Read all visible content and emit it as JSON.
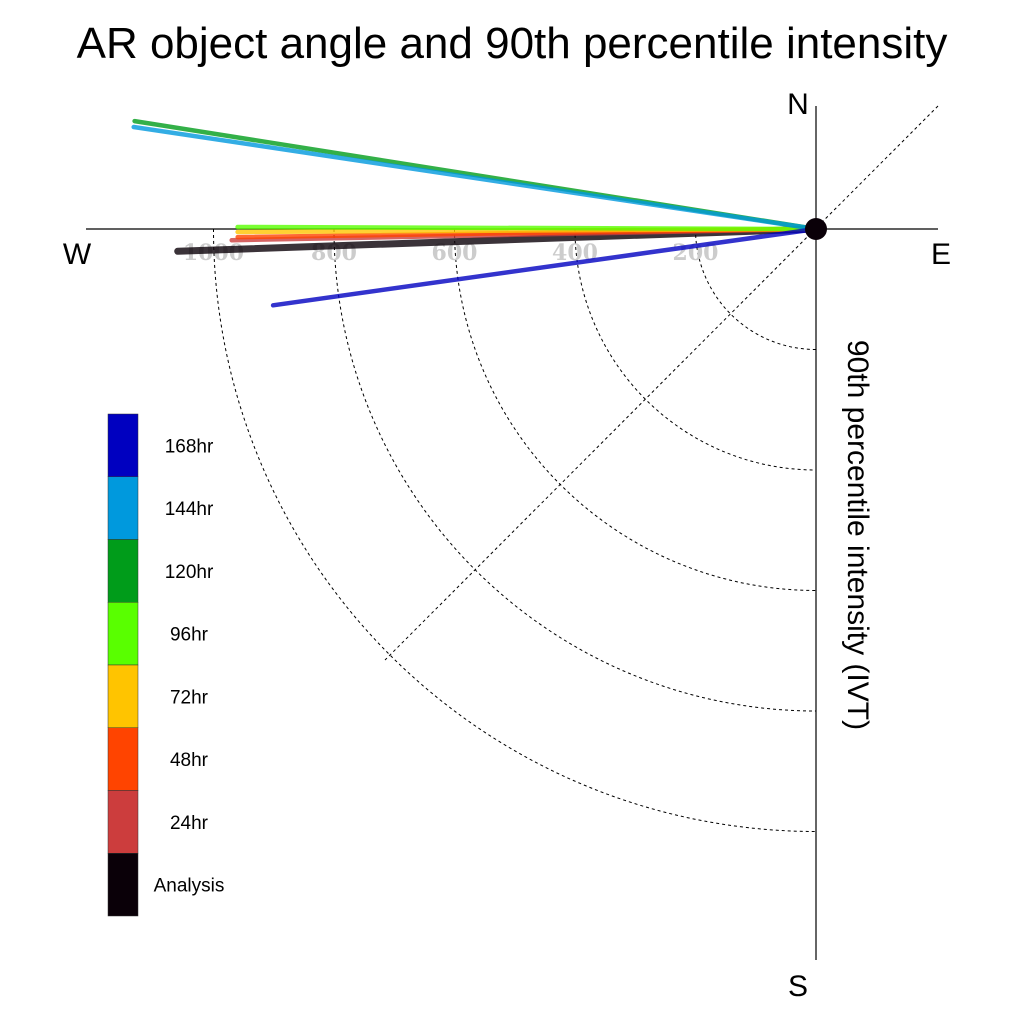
{
  "chart_data": {
    "type": "polar-line",
    "title": "AR object angle and 90th percentile intensity",
    "ylabel": "90th percentile intensity (IVT)",
    "directions": {
      "north": "N",
      "south": "S",
      "east": "E",
      "west": "W"
    },
    "radial_ticks": [
      "1000",
      "800",
      "600",
      "400",
      "200"
    ],
    "radial_tick_values": [
      1000,
      800,
      600,
      400,
      200
    ],
    "radial_max": 1200,
    "series": [
      {
        "name": "168hr",
        "color": "#0000c0",
        "angle": 8,
        "intensity": 910
      },
      {
        "name": "144hr",
        "color": "#0099dd",
        "angle": -8.5,
        "intensity": 1145
      },
      {
        "name": "120hr",
        "color": "#009c1a",
        "angle": -9,
        "intensity": 1145
      },
      {
        "name": "96hr",
        "color": "#59ff00",
        "angle": -0.2,
        "intensity": 960
      },
      {
        "name": "72hr",
        "color": "#ffc400",
        "angle": 0.3,
        "intensity": 960
      },
      {
        "name": "48hr",
        "color": "#ff4400",
        "angle": 0.8,
        "intensity": 960
      },
      {
        "name": "24hr",
        "color": "#cc3d3d",
        "angle": 1.1,
        "intensity": 970
      },
      {
        "name": "Analysis",
        "color": "#0a0008",
        "angle": 2,
        "intensity": 1060
      }
    ],
    "legend": {
      "entries": [
        "168hr",
        "144hr",
        "120hr",
        "96hr",
        "72hr",
        "48hr",
        "24hr",
        "Analysis"
      ],
      "colors": [
        "#0000c0",
        "#0099dd",
        "#009c1a",
        "#59ff00",
        "#ffc400",
        "#ff4400",
        "#cc3d3d",
        "#0a0008"
      ],
      "placement": "bottom-left"
    },
    "grid": true
  }
}
